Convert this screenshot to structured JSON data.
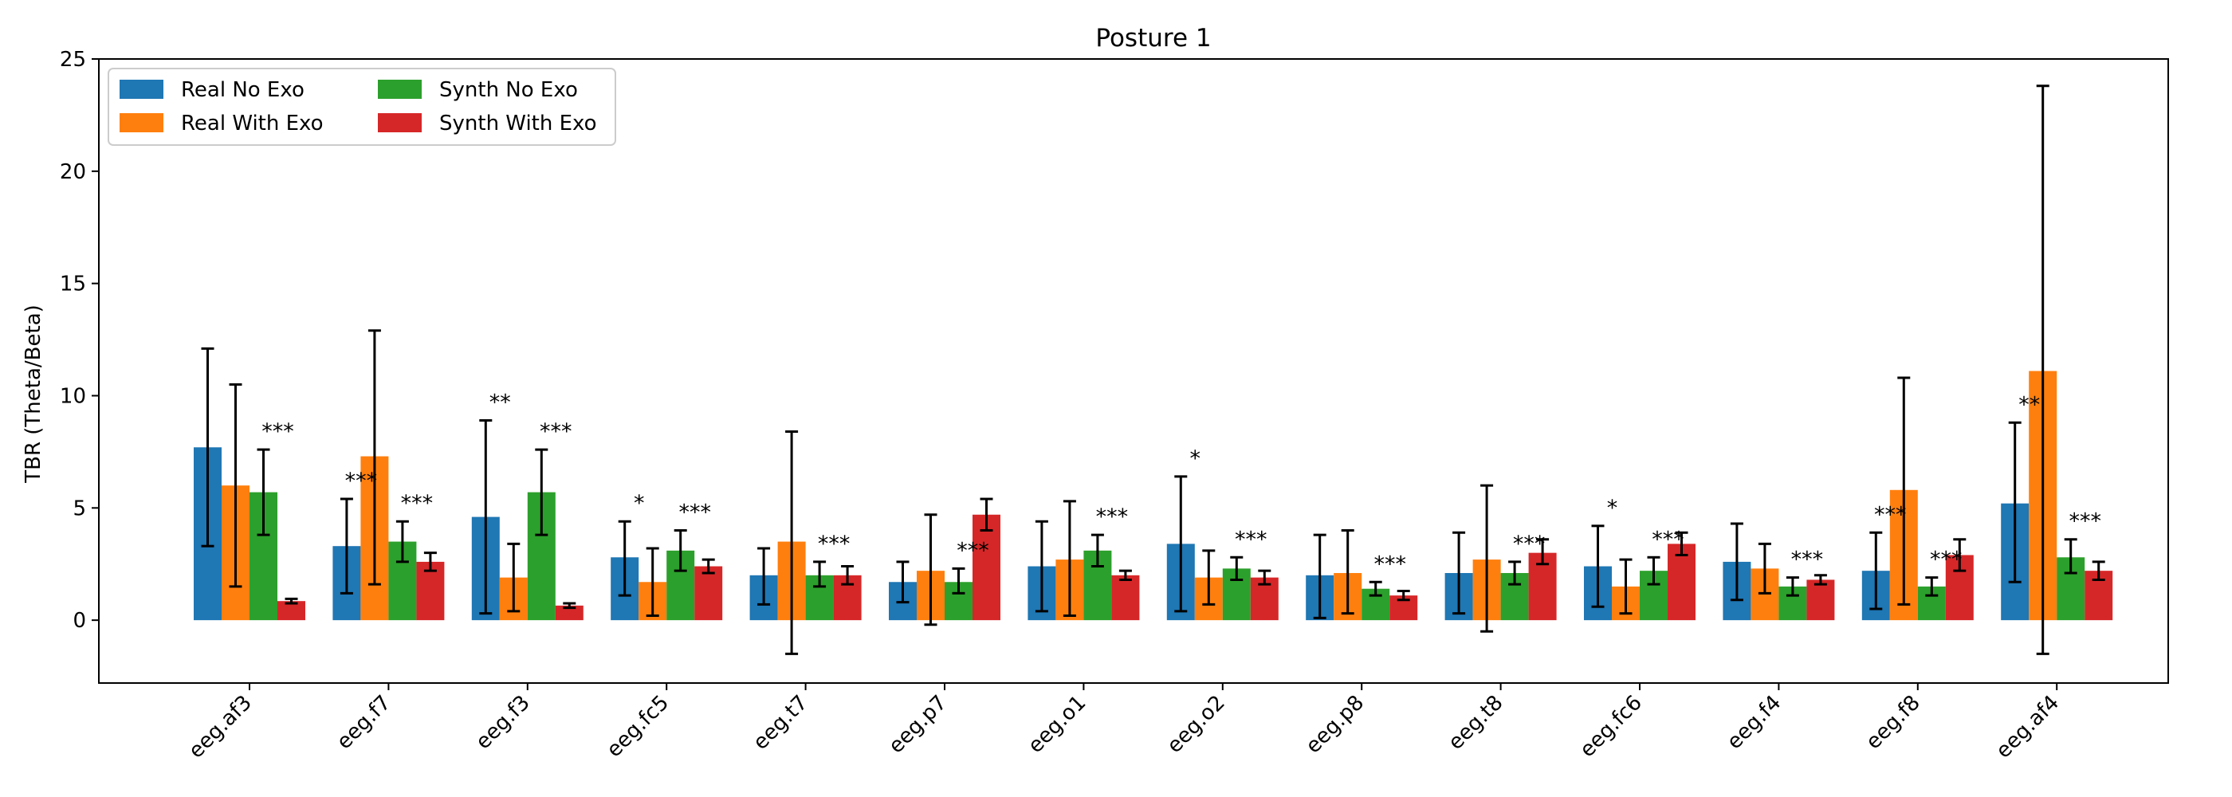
{
  "chart_data": {
    "type": "bar",
    "title": "Posture 1",
    "xlabel": "",
    "ylabel": "TBR (Theta/Beta)",
    "ylim": [
      -2.8,
      25
    ],
    "yticks": [
      0,
      5,
      10,
      15,
      20,
      25
    ],
    "grid": false,
    "legend_position": "top-left",
    "categories": [
      "eeg.af3",
      "eeg.f7",
      "eeg.f3",
      "eeg.fc5",
      "eeg.t7",
      "eeg.p7",
      "eeg.o1",
      "eeg.o2",
      "eeg.p8",
      "eeg.t8",
      "eeg.fc6",
      "eeg.f4",
      "eeg.f8",
      "eeg.af4"
    ],
    "series": [
      {
        "name": "Real No Exo",
        "color": "#1f77b4",
        "values": [
          7.7,
          3.3,
          4.6,
          2.8,
          2.0,
          1.7,
          2.4,
          3.4,
          2.0,
          2.1,
          2.4,
          2.6,
          2.2,
          5.2
        ],
        "error_low": [
          3.3,
          1.2,
          0.3,
          1.1,
          0.7,
          0.8,
          0.4,
          0.4,
          0.1,
          0.3,
          0.6,
          0.9,
          0.5,
          1.7
        ],
        "error_high": [
          12.1,
          5.4,
          8.9,
          4.4,
          3.2,
          2.6,
          4.4,
          6.4,
          3.8,
          3.9,
          4.2,
          4.3,
          3.9,
          8.8
        ]
      },
      {
        "name": "Real With Exo",
        "color": "#ff7f0e",
        "values": [
          6.0,
          7.3,
          1.9,
          1.7,
          3.5,
          2.2,
          2.7,
          1.9,
          2.1,
          2.7,
          1.5,
          2.3,
          5.8,
          11.1
        ],
        "error_low": [
          1.5,
          1.6,
          0.4,
          0.2,
          -1.5,
          -0.2,
          0.2,
          0.7,
          0.3,
          -0.5,
          0.3,
          1.2,
          0.7,
          -1.5
        ],
        "error_high": [
          10.5,
          12.9,
          3.4,
          3.2,
          8.4,
          4.7,
          5.3,
          3.1,
          4.0,
          6.0,
          2.7,
          3.4,
          10.8,
          23.8
        ]
      },
      {
        "name": "Synth No Exo",
        "color": "#2ca02c",
        "values": [
          5.7,
          3.5,
          5.7,
          3.1,
          2.0,
          1.7,
          3.1,
          2.3,
          1.4,
          2.1,
          2.2,
          1.5,
          1.5,
          2.8
        ],
        "error_low": [
          3.8,
          2.6,
          3.8,
          2.2,
          1.5,
          1.2,
          2.4,
          1.8,
          1.1,
          1.6,
          1.6,
          1.1,
          1.1,
          2.1
        ],
        "error_high": [
          7.6,
          4.4,
          7.6,
          4.0,
          2.6,
          2.3,
          3.8,
          2.8,
          1.7,
          2.6,
          2.8,
          1.9,
          1.9,
          3.6
        ]
      },
      {
        "name": "Synth With Exo",
        "color": "#d62728",
        "values": [
          0.85,
          2.6,
          0.65,
          2.4,
          2.0,
          4.7,
          2.0,
          1.9,
          1.1,
          3.0,
          3.4,
          1.8,
          2.9,
          2.2
        ],
        "error_low": [
          0.75,
          2.2,
          0.55,
          2.1,
          1.6,
          4.0,
          1.8,
          1.6,
          0.9,
          2.5,
          2.9,
          1.6,
          2.2,
          1.8
        ],
        "error_high": [
          0.95,
          3.0,
          0.75,
          2.7,
          2.4,
          5.4,
          2.2,
          2.2,
          1.3,
          3.6,
          3.9,
          2.0,
          3.6,
          2.6
        ]
      }
    ],
    "annotations": [
      {
        "category": "eeg.af3",
        "series": "Synth No Exo",
        "text": "***"
      },
      {
        "category": "eeg.f7",
        "series": "Real No Exo",
        "text": "***"
      },
      {
        "category": "eeg.f7",
        "series": "Synth No Exo",
        "text": "***"
      },
      {
        "category": "eeg.f3",
        "series": "Real No Exo",
        "text": "**"
      },
      {
        "category": "eeg.f3",
        "series": "Synth No Exo",
        "text": "***"
      },
      {
        "category": "eeg.fc5",
        "series": "Real No Exo",
        "text": "*"
      },
      {
        "category": "eeg.fc5",
        "series": "Synth No Exo",
        "text": "***"
      },
      {
        "category": "eeg.t7",
        "series": "Synth No Exo",
        "text": "***"
      },
      {
        "category": "eeg.p7",
        "series": "Synth No Exo",
        "text": "***"
      },
      {
        "category": "eeg.o1",
        "series": "Synth No Exo",
        "text": "***"
      },
      {
        "category": "eeg.o2",
        "series": "Real No Exo",
        "text": "*"
      },
      {
        "category": "eeg.o2",
        "series": "Synth No Exo",
        "text": "***"
      },
      {
        "category": "eeg.p8",
        "series": "Synth No Exo",
        "text": "***"
      },
      {
        "category": "eeg.t8",
        "series": "Synth No Exo",
        "text": "***"
      },
      {
        "category": "eeg.fc6",
        "series": "Real No Exo",
        "text": "*"
      },
      {
        "category": "eeg.fc6",
        "series": "Synth No Exo",
        "text": "***"
      },
      {
        "category": "eeg.f4",
        "series": "Synth No Exo",
        "text": "***"
      },
      {
        "category": "eeg.f8",
        "series": "Real No Exo",
        "text": "***"
      },
      {
        "category": "eeg.f8",
        "series": "Synth No Exo",
        "text": "***"
      },
      {
        "category": "eeg.af4",
        "series": "Real No Exo",
        "text": "**"
      },
      {
        "category": "eeg.af4",
        "series": "Synth No Exo",
        "text": "***"
      }
    ]
  }
}
